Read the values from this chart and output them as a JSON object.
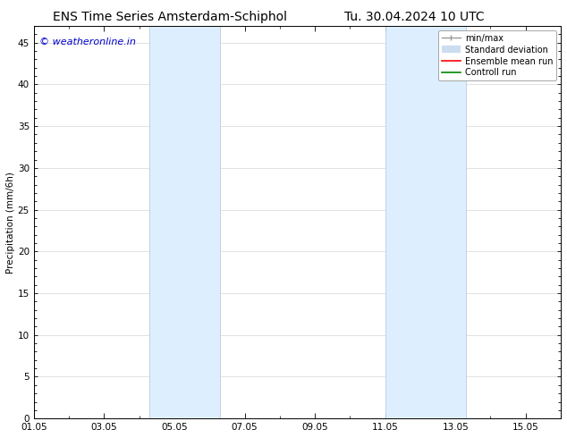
{
  "title_left": "ENS Time Series Amsterdam-Schiphol",
  "title_right": "Tu. 30.04.2024 10 UTC",
  "ylabel": "Precipitation (mm/6h)",
  "watermark": "© weatheronline.in",
  "watermark_color": "#0000cc",
  "ylim": [
    0,
    47
  ],
  "yticks": [
    0,
    5,
    10,
    15,
    20,
    25,
    30,
    35,
    40,
    45
  ],
  "xlim": [
    0,
    15
  ],
  "xtick_labels": [
    "01.05",
    "03.05",
    "05.05",
    "07.05",
    "09.05",
    "11.05",
    "13.05",
    "15.05"
  ],
  "xtick_positions": [
    0,
    2,
    4,
    6,
    8,
    10,
    12,
    14
  ],
  "shaded_bands": [
    {
      "xmin": 3.3,
      "xmax": 5.3
    },
    {
      "xmin": 10.0,
      "xmax": 12.3
    }
  ],
  "shaded_color": "#ddeeff",
  "shaded_edge_color": "#bbccdd",
  "background_color": "#ffffff",
  "legend_entries": [
    {
      "label": "min/max",
      "color": "#999999",
      "lw": 1.0,
      "style": "line_with_caps"
    },
    {
      "label": "Standard deviation",
      "color": "#ccddf0",
      "lw": 6,
      "style": "thick_line"
    },
    {
      "label": "Ensemble mean run",
      "color": "#ff0000",
      "lw": 1.2,
      "style": "line"
    },
    {
      "label": "Controll run",
      "color": "#008800",
      "lw": 1.2,
      "style": "line"
    }
  ],
  "grid_color": "#cccccc",
  "axis_color": "#000000",
  "tick_color": "#000000",
  "font_size_title": 10,
  "font_size_axis": 7.5,
  "font_size_legend": 7,
  "font_size_watermark": 8
}
